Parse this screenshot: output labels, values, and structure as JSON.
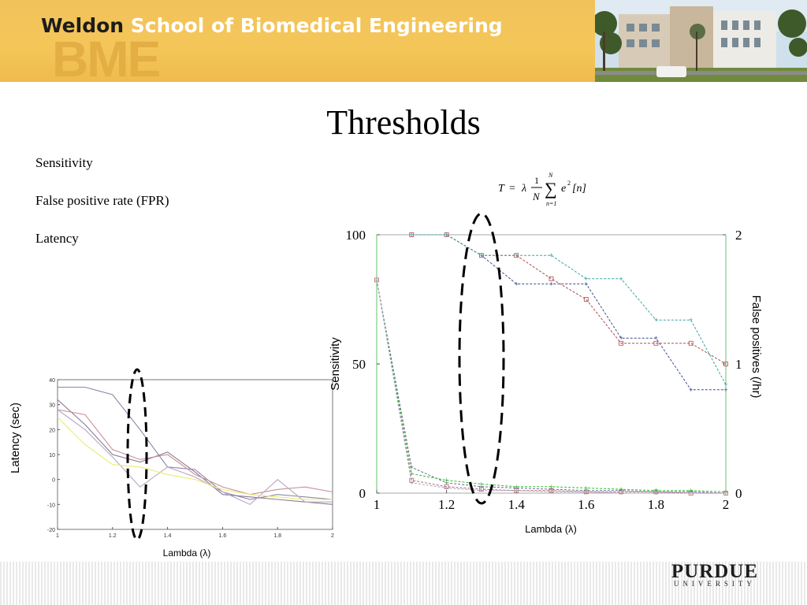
{
  "header": {
    "logo_bold": "Weldon",
    "logo_rest": " School of Biomedical Engineering",
    "watermark": "BME"
  },
  "slide": {
    "title": "Thresholds",
    "bullets": [
      "Sensitivity",
      "False positive rate (FPR)",
      "Latency"
    ]
  },
  "formula": {
    "lhs": "T",
    "equals": "=",
    "lambda": "λ",
    "numerator": "1",
    "denominator": "N",
    "sum_upper": "N",
    "sum_lower": "n=1",
    "term": "e",
    "exponent": "2",
    "index": "[n]"
  },
  "footer": {
    "logo_main": "PURDUE",
    "logo_sub": "UNIVERSITY"
  },
  "colors": {
    "banner": "#f4c659",
    "series_blue": "#3c4f8f",
    "series_red": "#b04a4a",
    "series_cyan": "#37a6a6",
    "series_green": "#2fbf2f",
    "series_yellow": "#e8e850",
    "series_mauve": "#9a7aa0",
    "annotation": "#000000"
  },
  "chart_data": [
    {
      "type": "line",
      "id": "latency",
      "title": "",
      "xlabel": "Lambda (λ)",
      "ylabel": "Latency (sec)",
      "xlim": [
        1,
        2
      ],
      "ylim": [
        -20,
        40
      ],
      "x_ticks": [
        1,
        1.2,
        1.4,
        1.6,
        1.8,
        2
      ],
      "x_tick_labels": [
        "1",
        "1.2",
        "1.4",
        "1.6",
        "1.8",
        "2"
      ],
      "y_ticks": [
        -20,
        -10,
        0,
        10,
        20,
        30,
        40
      ],
      "y_tick_labels": [
        "-20",
        "-10",
        "0",
        "10",
        "20",
        "30",
        "40"
      ],
      "series": [
        {
          "color": "#8a86a8",
          "x": [
            1,
            1.1,
            1.2,
            1.3,
            1.4,
            1.5,
            1.6,
            1.7,
            1.8,
            1.9,
            2
          ],
          "y": [
            37,
            37,
            34,
            20,
            5,
            4,
            -5,
            -8,
            -6,
            -7,
            -8
          ]
        },
        {
          "color": "#8a7a95",
          "x": [
            1,
            1.1,
            1.2,
            1.3,
            1.4,
            1.5,
            1.6,
            1.7,
            1.8,
            1.9,
            2
          ],
          "y": [
            32,
            22,
            10,
            7,
            11,
            3,
            -6,
            -7,
            -8,
            -9,
            -10
          ]
        },
        {
          "color": "#c88d9a",
          "x": [
            1,
            1.1,
            1.2,
            1.3,
            1.4,
            1.5,
            1.6,
            1.7,
            1.8,
            1.9,
            2
          ],
          "y": [
            28,
            26,
            12,
            8,
            10,
            2,
            -3,
            -6,
            -4,
            -3,
            -5
          ]
        },
        {
          "color": "#b7a7c0",
          "x": [
            1,
            1.1,
            1.2,
            1.3,
            1.4,
            1.5,
            1.6,
            1.7,
            1.8,
            1.9,
            2
          ],
          "y": [
            28,
            20,
            9,
            -3,
            5,
            1,
            -5,
            -10,
            0,
            -9,
            -9
          ]
        },
        {
          "color": "#ebeb73",
          "x": [
            1,
            1.1,
            1.2,
            1.3,
            1.4,
            1.5,
            1.6,
            1.7,
            1.8,
            1.9,
            2
          ],
          "y": [
            25,
            14,
            6,
            5,
            2,
            0,
            -4,
            -6,
            -7,
            -8,
            -8
          ]
        }
      ]
    },
    {
      "type": "line",
      "id": "sensitivity_fpr",
      "title": "",
      "xlabel": "Lambda (λ)",
      "ylabel": "Sensitivity",
      "y2label": "False positives (/hr)",
      "xlim": [
        1,
        2
      ],
      "ylim": [
        0,
        100
      ],
      "y2lim": [
        0,
        2
      ],
      "x_ticks": [
        1,
        1.2,
        1.4,
        1.6,
        1.8,
        2
      ],
      "x_tick_labels": [
        "1",
        "1.2",
        "1.4",
        "1.6",
        "1.8",
        "2"
      ],
      "y_ticks": [
        0,
        50,
        100
      ],
      "y_tick_labels": [
        "0",
        "50",
        "100"
      ],
      "y2_ticks": [
        0,
        1,
        2
      ],
      "y2_tick_labels": [
        "0",
        "1",
        "2"
      ],
      "series": [
        {
          "axis": "left",
          "color": "#3c4f8f",
          "x": [
            1.1,
            1.2,
            1.3,
            1.4,
            1.5,
            1.6,
            1.7,
            1.8,
            1.9,
            2
          ],
          "y": [
            100,
            100,
            92,
            81,
            81,
            81,
            60,
            60,
            40,
            40
          ]
        },
        {
          "axis": "left",
          "color": "#b04a4a",
          "x": [
            1.1,
            1.2,
            1.3,
            1.4,
            1.5,
            1.6,
            1.7,
            1.8,
            1.9,
            2
          ],
          "y": [
            100,
            100,
            92,
            92,
            83,
            75,
            58,
            58,
            58,
            50
          ]
        },
        {
          "axis": "left",
          "color": "#37a6a6",
          "x": [
            1.1,
            1.2,
            1.3,
            1.4,
            1.5,
            1.6,
            1.7,
            1.8,
            1.9,
            2
          ],
          "y": [
            100,
            100,
            92,
            92,
            92,
            83,
            83,
            67,
            67,
            42
          ]
        },
        {
          "axis": "right",
          "color": "#6a6a9a",
          "x": [
            1,
            1.1,
            1.2,
            1.3,
            1.4,
            1.5,
            1.6,
            1.7,
            1.8,
            1.9,
            2
          ],
          "y": [
            1.65,
            0.2,
            0.08,
            0.05,
            0.04,
            0.03,
            0.02,
            0.02,
            0.01,
            0.01,
            0.0
          ]
        },
        {
          "axis": "right",
          "color": "#b06a6a",
          "x": [
            1,
            1.1,
            1.2,
            1.3,
            1.4,
            1.5,
            1.6,
            1.7,
            1.8,
            1.9,
            2
          ],
          "y": [
            1.65,
            0.1,
            0.05,
            0.03,
            0.02,
            0.02,
            0.01,
            0.01,
            0.01,
            0.0,
            0.0
          ]
        },
        {
          "axis": "right",
          "color": "#2fbf2f",
          "x": [
            1,
            1.1,
            1.2,
            1.3,
            1.4,
            1.5,
            1.6,
            1.7,
            1.8,
            1.9,
            2
          ],
          "y": [
            1.65,
            0.15,
            0.1,
            0.07,
            0.05,
            0.05,
            0.04,
            0.03,
            0.02,
            0.02,
            0.01
          ]
        },
        {
          "axis": "right",
          "color": "#b0a0c8",
          "x": [
            1,
            1.1,
            1.2,
            1.3,
            1.4,
            1.5,
            1.6,
            1.7,
            1.8,
            1.9,
            2
          ],
          "y": [
            1.65,
            0.08,
            0.04,
            0.02,
            0.02,
            0.01,
            0.01,
            0.0,
            0.0,
            0.0,
            0.0
          ]
        }
      ]
    }
  ]
}
